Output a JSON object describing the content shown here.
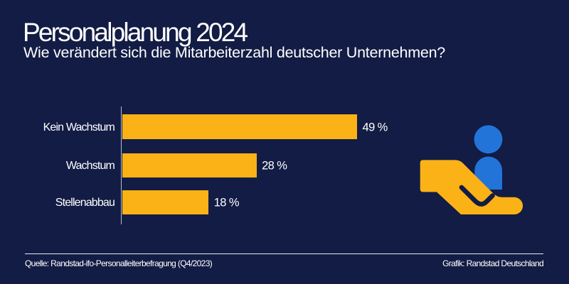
{
  "meta": {
    "background_color": "#121C44",
    "accent_yellow": "#FBB216",
    "accent_blue": "#2374D8",
    "text_color": "#FFFFFF"
  },
  "header": {
    "title": "Personalplanung 2024",
    "subtitle": "Wie verändert sich die Mitarbeiterzahl deutscher Unternehmen?"
  },
  "chart_data": {
    "type": "bar",
    "orientation": "horizontal",
    "categories": [
      "Kein Wachstum",
      "Wachstum",
      "Stellenabbau"
    ],
    "values": [
      49,
      28,
      18
    ],
    "value_labels": [
      "49 %",
      "28 %",
      "18 %"
    ],
    "unit": "%",
    "xlim": [
      0,
      49
    ],
    "bar_color": "#FBB216",
    "label_color": "#FFFFFF",
    "grid": false,
    "legend": false
  },
  "icon": {
    "name": "hand-holding-person",
    "hand_color": "#FBB216",
    "person_color": "#2374D8"
  },
  "footer": {
    "source": "Quelle: Randstad-ifo-Personalleiterbefragung (Q4/2023)",
    "credit": "Grafik: Randstad Deutschland"
  }
}
